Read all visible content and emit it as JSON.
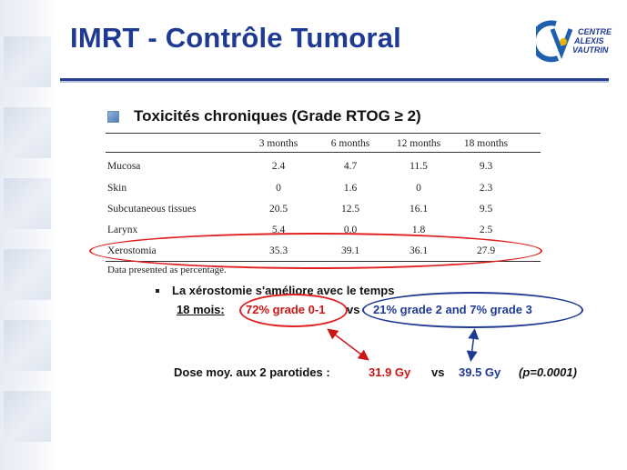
{
  "slide": {
    "title": "IMRT - Contrôle Tumoral",
    "logo_lines": [
      "CENTRE",
      "ALEXIS",
      "VAUTRIN"
    ],
    "subtitle": "Toxicités chroniques (Grade RTOG ≥ 2)"
  },
  "table": {
    "headers": [
      "3 months",
      "6 months",
      "12 months",
      "18 months"
    ],
    "rows": [
      {
        "label": "Mucosa",
        "values": [
          "2.4",
          "4.7",
          "11.5",
          "9.3"
        ]
      },
      {
        "label": "Skin",
        "values": [
          "0",
          "1.6",
          "0",
          "2.3"
        ]
      },
      {
        "label": "Subcutaneous tissues",
        "values": [
          "20.5",
          "12.5",
          "16.1",
          "9.5"
        ]
      },
      {
        "label": "Larynx",
        "values": [
          "5.4",
          "0.0",
          "1.8",
          "2.5"
        ]
      },
      {
        "label": "Xerostomia",
        "values": [
          "35.3",
          "39.1",
          "36.1",
          "27.9"
        ]
      }
    ],
    "footnote": "Data presented as percentage."
  },
  "findings": {
    "bullet": "La xérostomie s'améliore avec le temps",
    "label_18": "18 mois:",
    "red_value": "72% grade 0-1",
    "vs": "vs",
    "blue_value": "21% grade 2   and   7% grade 3"
  },
  "dose": {
    "label": "Dose moy. aux 2 parotides :",
    "red": "31.9 Gy",
    "vs": "vs",
    "blue": "39.5 Gy",
    "p": "(p=0.0001)"
  },
  "colors": {
    "title": "#1f3a93",
    "red": "#cc1515",
    "blue": "#1f3a93"
  }
}
